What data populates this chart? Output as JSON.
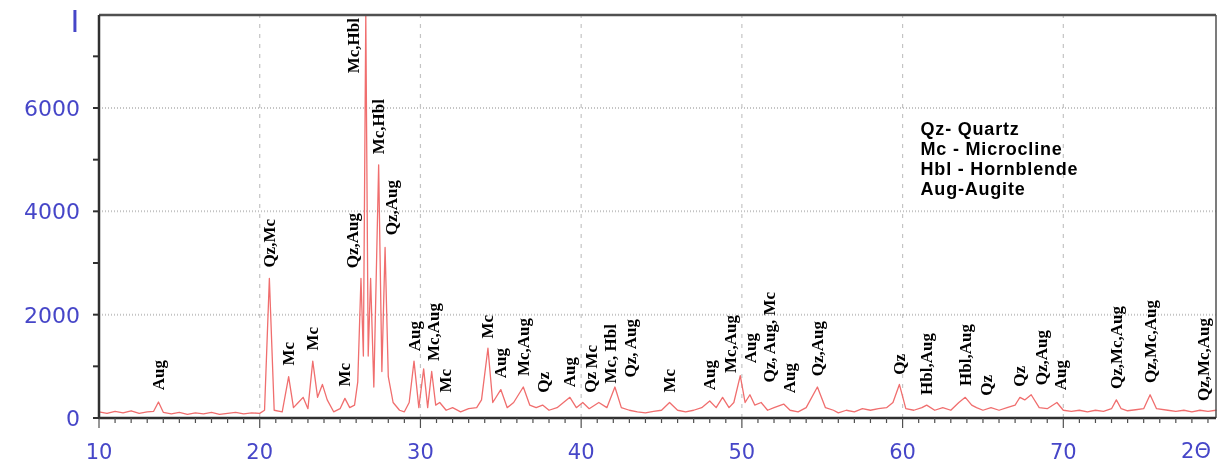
{
  "chart_data": {
    "type": "line",
    "xlabel": "2Θ",
    "ylabel": "I",
    "x": [
      10,
      10.5,
      11,
      11.5,
      12,
      12.5,
      13,
      13.4,
      13.7,
      14,
      14.5,
      15,
      15.5,
      16,
      16.5,
      17,
      17.5,
      18,
      18.5,
      19,
      19.5,
      20,
      20.3,
      20.6,
      20.9,
      21.4,
      21.8,
      22.1,
      22.4,
      22.7,
      23,
      23.3,
      23.6,
      23.9,
      24.2,
      24.6,
      25,
      25.3,
      25.6,
      25.9,
      26.1,
      26.3,
      26.45,
      26.6,
      26.75,
      26.9,
      27.1,
      27.4,
      27.6,
      27.8,
      28,
      28.3,
      28.7,
      29,
      29.3,
      29.6,
      29.9,
      30.2,
      30.45,
      30.7,
      30.95,
      31.2,
      31.6,
      32,
      32.5,
      33,
      33.5,
      33.8,
      34.2,
      34.5,
      35,
      35.4,
      35.8,
      36.4,
      36.8,
      37.2,
      37.6,
      38,
      38.5,
      39.3,
      39.7,
      40.1,
      40.5,
      41.1,
      41.6,
      42.1,
      42.5,
      43,
      43.5,
      44,
      44.5,
      45,
      45.5,
      46,
      46.5,
      47,
      47.5,
      48,
      48.4,
      48.8,
      49.2,
      49.5,
      49.9,
      50.2,
      50.5,
      50.8,
      51.2,
      51.6,
      52,
      52.6,
      53,
      53.5,
      54,
      54.7,
      55.2,
      55.7,
      56,
      56.5,
      57,
      57.5,
      58,
      58.5,
      59,
      59.4,
      59.8,
      60.2,
      60.7,
      61.2,
      61.5,
      62,
      62.5,
      63,
      63.5,
      63.9,
      64.3,
      64.6,
      65,
      65.5,
      66,
      66.5,
      67,
      67.3,
      67.6,
      68,
      68.5,
      69,
      69.6,
      70,
      70.5,
      71,
      71.5,
      72,
      72.5,
      73,
      73.3,
      73.6,
      74,
      74.5,
      75,
      75.4,
      75.8,
      76.5,
      77,
      77.5,
      78,
      78.5,
      79,
      79.5
    ],
    "series": [
      {
        "color": "#f06e6e",
        "values": [
          120,
          90,
          130,
          100,
          140,
          90,
          120,
          130,
          310,
          110,
          80,
          110,
          70,
          100,
          80,
          110,
          70,
          90,
          110,
          80,
          100,
          90,
          150,
          2700,
          150,
          120,
          800,
          200,
          300,
          400,
          180,
          1100,
          400,
          650,
          350,
          120,
          180,
          380,
          200,
          250,
          700,
          2700,
          1200,
          7800,
          1200,
          2700,
          600,
          4900,
          900,
          3300,
          800,
          300,
          150,
          120,
          300,
          1100,
          200,
          950,
          200,
          900,
          250,
          300,
          150,
          200,
          120,
          180,
          200,
          350,
          1350,
          300,
          550,
          200,
          300,
          600,
          250,
          200,
          250,
          150,
          200,
          400,
          200,
          300,
          180,
          300,
          200,
          600,
          200,
          150,
          120,
          100,
          130,
          150,
          300,
          150,
          120,
          150,
          200,
          330,
          200,
          400,
          200,
          300,
          820,
          300,
          450,
          250,
          300,
          150,
          200,
          270,
          150,
          120,
          200,
          600,
          200,
          150,
          100,
          150,
          120,
          180,
          150,
          180,
          200,
          300,
          650,
          180,
          150,
          200,
          250,
          150,
          200,
          150,
          300,
          400,
          250,
          200,
          150,
          200,
          150,
          200,
          250,
          400,
          350,
          450,
          200,
          180,
          300,
          150,
          130,
          150,
          120,
          150,
          130,
          180,
          350,
          180,
          140,
          160,
          180,
          450,
          180,
          150,
          130,
          150,
          120,
          150,
          130,
          150
        ]
      }
    ],
    "xlim": [
      10,
      79.5
    ],
    "ylim": [
      0,
      7800
    ],
    "xticks": [
      10,
      {
        "value": 11,
        "label": null
      },
      {
        "value": 12,
        "label": null
      },
      {
        "value": 13,
        "label": null
      },
      {
        "value": 14,
        "label": null
      },
      {
        "value": 15,
        "label": null
      },
      {
        "value": 16,
        "label": null
      },
      {
        "value": 17,
        "label": null
      },
      {
        "value": 18,
        "label": null
      },
      {
        "value": 19,
        "label": null
      },
      20,
      {
        "value": 21,
        "label": null
      },
      {
        "value": 22,
        "label": null
      },
      {
        "value": 23,
        "label": null
      },
      {
        "value": 24,
        "label": null
      },
      {
        "value": 25,
        "label": null
      },
      {
        "value": 26,
        "label": null
      },
      {
        "value": 27,
        "label": null
      },
      {
        "value": 28,
        "label": null
      },
      {
        "value": 29,
        "label": null
      },
      30,
      {
        "value": 31,
        "label": null
      },
      {
        "value": 32,
        "label": null
      },
      {
        "value": 33,
        "label": null
      },
      {
        "value": 34,
        "label": null
      },
      {
        "value": 35,
        "label": null
      },
      {
        "value": 36,
        "label": null
      },
      {
        "value": 37,
        "label": null
      },
      {
        "value": 38,
        "label": null
      },
      {
        "value": 39,
        "label": null
      },
      40,
      {
        "value": 41,
        "label": null
      },
      {
        "value": 42,
        "label": null
      },
      {
        "value": 43,
        "label": null
      },
      {
        "value": 44,
        "label": null
      },
      {
        "value": 45,
        "label": null
      },
      {
        "value": 46,
        "label": null
      },
      {
        "value": 47,
        "label": null
      },
      {
        "value": 48,
        "label": null
      },
      {
        "value": 49,
        "label": null
      },
      50,
      {
        "value": 51,
        "label": null
      },
      {
        "value": 52,
        "label": null
      },
      {
        "value": 53,
        "label": null
      },
      {
        "value": 54,
        "label": null
      },
      {
        "value": 55,
        "label": null
      },
      {
        "value": 56,
        "label": null
      },
      {
        "value": 57,
        "label": null
      },
      {
        "value": 58,
        "label": null
      },
      {
        "value": 59,
        "label": null
      },
      60,
      {
        "value": 61,
        "label": null
      },
      {
        "value": 62,
        "label": null
      },
      {
        "value": 63,
        "label": null
      },
      {
        "value": 64,
        "label": null
      },
      {
        "value": 65,
        "label": null
      },
      {
        "value": 66,
        "label": null
      },
      {
        "value": 67,
        "label": null
      },
      {
        "value": 68,
        "label": null
      },
      {
        "value": 69,
        "label": null
      },
      70,
      {
        "value": 71,
        "label": null
      },
      {
        "value": 72,
        "label": null
      },
      {
        "value": 73,
        "label": null
      },
      {
        "value": 74,
        "label": null
      },
      {
        "value": 75,
        "label": null
      },
      {
        "value": 76,
        "label": null
      },
      {
        "value": 77,
        "label": null
      },
      {
        "value": 78,
        "label": null
      },
      {
        "value": 79,
        "label": null
      }
    ],
    "yticks": [
      0,
      {
        "value": 1000,
        "label": null
      },
      2000,
      {
        "value": 3000,
        "label": null
      },
      4000,
      {
        "value": 5000,
        "label": null
      },
      6000,
      {
        "value": 7000,
        "label": null
      }
    ],
    "grid": true,
    "annotations": [
      "Qz- Quartz",
      "Mc - Microcline",
      "Hbl - Hornblende",
      "Aug-Augite",
      {
        "text": "Aug",
        "x": 13.7,
        "y": 310
      },
      {
        "text": "Qz,Mc",
        "x": 20.6,
        "y": 2700
      },
      {
        "text": "Mc",
        "x": 21.8,
        "y": 800
      },
      {
        "text": "Mc",
        "x": 23.3,
        "y": 1100
      },
      {
        "text": "Mc,Hbl",
        "x": 26.6,
        "y": 7800
      },
      {
        "text": "Mc",
        "x": 25.3,
        "y": 380
      },
      {
        "text": "Qz,Aug",
        "x": 26.3,
        "y": 2700
      },
      {
        "text": "Mc,Hbl",
        "x": 27.4,
        "y": 4900
      },
      {
        "text": "Qz,Aug",
        "x": 27.8,
        "y": 3300
      },
      {
        "text": "Aug",
        "x": 29.6,
        "y": 1100
      },
      {
        "text": "Mc,Aug",
        "x": 30.7,
        "y": 900
      },
      {
        "text": "Mc",
        "x": 31.2,
        "y": 300
      },
      {
        "text": "Mc",
        "x": 34.2,
        "y": 1350
      },
      {
        "text": "Aug",
        "x": 35,
        "y": 550
      },
      {
        "text": "Mc,Aug",
        "x": 36.4,
        "y": 600
      },
      {
        "text": "Qz",
        "x": 36.8,
        "y": 250
      },
      {
        "text": "Aug",
        "x": 39.3,
        "y": 400
      },
      {
        "text": "Qz",
        "x": 40.1,
        "y": 300
      },
      {
        "text": "Mc",
        "x": 40.5,
        "y": 180
      },
      {
        "text": "Mc, Hbl",
        "x": 41.1,
        "y": 300
      },
      {
        "text": "Qz, Aug",
        "x": 42.1,
        "y": 600
      },
      {
        "text": "Mc",
        "x": 45.5,
        "y": 300
      },
      {
        "text": "Aug",
        "x": 48,
        "y": 330
      },
      {
        "text": "Mc,Aug",
        "x": 48.8,
        "y": 400
      },
      {
        "text": "Aug",
        "x": 49.9,
        "y": 820
      },
      {
        "text": "Qz, Aug, Mc",
        "x": 50.5,
        "y": 450
      },
      {
        "text": "Aug",
        "x": 52.6,
        "y": 270
      },
      {
        "text": "Qz,Aug",
        "x": 54.7,
        "y": 600
      },
      {
        "text": "Qz",
        "x": 59.8,
        "y": 650
      },
      {
        "text": "Hbl,Aug",
        "x": 61.5,
        "y": 250
      },
      {
        "text": "Hbl,Aug",
        "x": 63.9,
        "y": 400
      },
      {
        "text": "Qz",
        "x": 64.6,
        "y": 200
      },
      {
        "text": "Qz",
        "x": 67.3,
        "y": 400
      },
      {
        "text": "Qz,Aug",
        "x": 68,
        "y": 450
      },
      {
        "text": "Aug",
        "x": 69.6,
        "y": 300
      },
      {
        "text": "Qz,Mc,Aug",
        "x": 73.3,
        "y": 350
      },
      {
        "text": "Qz,Mc,Aug",
        "x": 75.4,
        "y": 450
      },
      {
        "text": "Qz,Mc,Aug",
        "x": 79,
        "y": 130
      }
    ]
  }
}
